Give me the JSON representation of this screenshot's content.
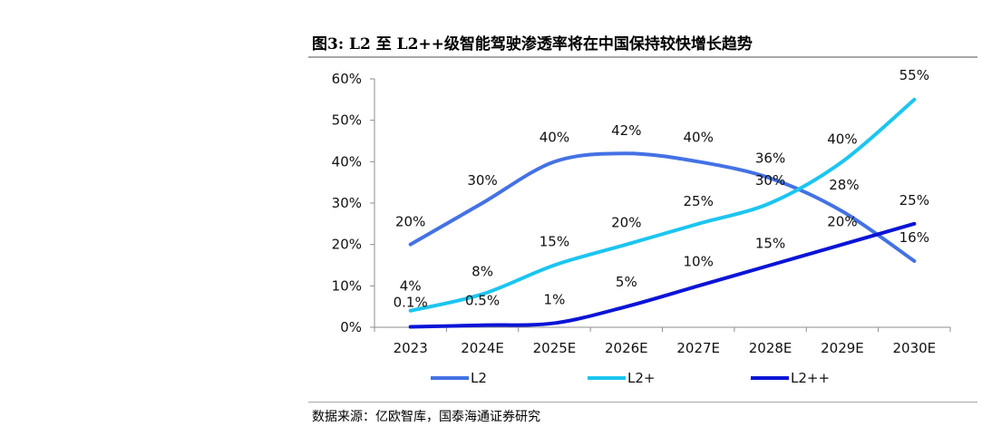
{
  "figure": {
    "title": "图3:  L2 至 L2++级智能驾驶渗透率将在中国保持较快增长趋势",
    "source": "数据来源：亿欧智库，国泰海通证券研究"
  },
  "chart_data": {
    "type": "line",
    "title": "L2 至 L2++级智能驾驶渗透率将在中国保持较快增长趋势",
    "categories": [
      "2023",
      "2024E",
      "2025E",
      "2026E",
      "2027E",
      "2028E",
      "2029E",
      "2030E"
    ],
    "y_ticks": [
      "0%",
      "10%",
      "20%",
      "30%",
      "40%",
      "50%",
      "60%"
    ],
    "ylim": [
      0,
      60
    ],
    "xlabel": "",
    "ylabel": "",
    "grid": false,
    "legend_position": "bottom",
    "series": [
      {
        "name": "L2",
        "color": "#4472e4",
        "values": [
          20,
          30,
          40,
          42,
          40,
          36,
          28,
          16
        ],
        "labels": [
          "20%",
          "30%",
          "40%",
          "42%",
          "40%",
          "36%",
          "28%",
          "16%"
        ]
      },
      {
        "name": "L2+",
        "color": "#1cc5f0",
        "values": [
          4,
          8,
          15,
          20,
          25,
          30,
          40,
          55
        ],
        "labels": [
          "4%",
          "8%",
          "15%",
          "20%",
          "25%",
          "30%",
          "40%",
          "55%"
        ]
      },
      {
        "name": "L2++",
        "color": "#0a14d6",
        "values": [
          0.1,
          0.5,
          1,
          5,
          10,
          15,
          20,
          25
        ],
        "labels": [
          "0.1%",
          "0.5%",
          "1%",
          "5%",
          "10%",
          "15%",
          "20%",
          "25%"
        ]
      }
    ]
  }
}
